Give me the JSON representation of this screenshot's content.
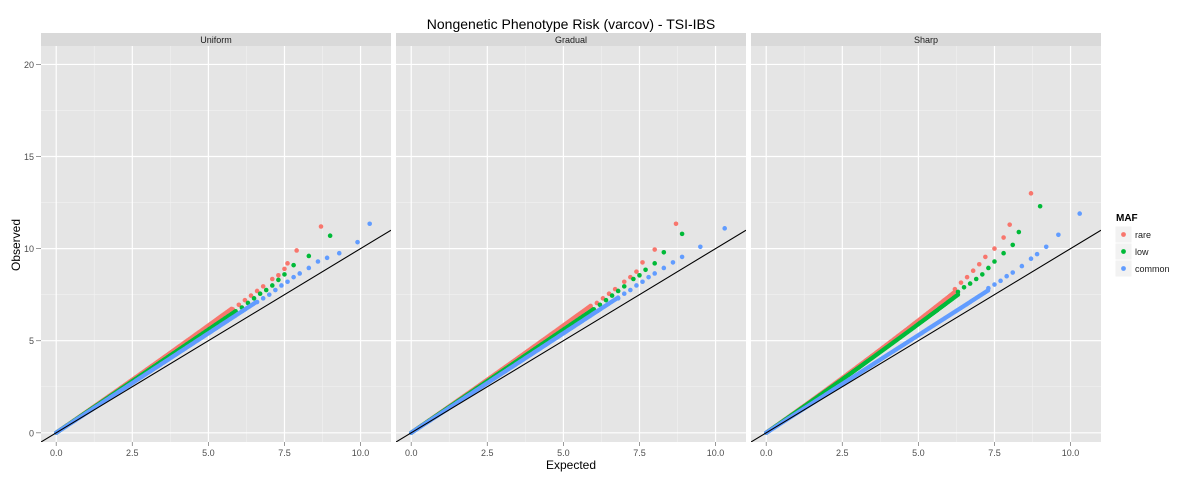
{
  "chart_data": {
    "type": "scatter",
    "title": "Nongenetic Phenotype Risk (varcov) - TSI-IBS",
    "xlabel": "Expected",
    "ylabel": "Observed",
    "xlim": [
      -0.5,
      11
    ],
    "ylim": [
      -0.5,
      21
    ],
    "x_ticks": [
      "0.0",
      "2.5",
      "5.0",
      "7.5",
      "10.0"
    ],
    "y_ticks": [
      "0",
      "5",
      "10",
      "15",
      "20"
    ],
    "grid": true,
    "reference_line": "y = x",
    "legend": {
      "title": "MAF",
      "placement": "right",
      "entries": [
        "rare",
        "low",
        "common"
      ]
    },
    "colors": {
      "rare": "#F8766D",
      "low": "#00BA38",
      "common": "#619CFF"
    },
    "panels": [
      {
        "title": "Uniform",
        "series": [
          {
            "name": "rare",
            "slope": 1.14,
            "curve": 0.005,
            "xmax": 8.7,
            "tail": [
              [
                5.8,
                6.7
              ],
              [
                6.0,
                6.95
              ],
              [
                6.2,
                7.2
              ],
              [
                6.4,
                7.45
              ],
              [
                6.6,
                7.7
              ],
              [
                6.8,
                7.95
              ],
              [
                7.1,
                8.35
              ],
              [
                7.3,
                8.55
              ],
              [
                7.5,
                8.9
              ],
              [
                7.6,
                9.2
              ],
              [
                7.9,
                9.9
              ],
              [
                8.7,
                11.2
              ]
            ]
          },
          {
            "name": "low",
            "slope": 1.12,
            "curve": 0.0,
            "xmax": 9.0,
            "tail": [
              [
                5.9,
                6.55
              ],
              [
                6.1,
                6.8
              ],
              [
                6.3,
                7.05
              ],
              [
                6.5,
                7.3
              ],
              [
                6.7,
                7.55
              ],
              [
                6.9,
                7.75
              ],
              [
                7.1,
                8.0
              ],
              [
                7.3,
                8.3
              ],
              [
                7.5,
                8.6
              ],
              [
                7.8,
                9.1
              ],
              [
                8.3,
                9.6
              ],
              [
                9.0,
                10.7
              ]
            ]
          },
          {
            "name": "common",
            "slope": 1.08,
            "curve": 0.0,
            "xmax": 10.3,
            "tail": [
              [
                6.6,
                7.1
              ],
              [
                6.8,
                7.3
              ],
              [
                7.0,
                7.5
              ],
              [
                7.2,
                7.75
              ],
              [
                7.4,
                8.0
              ],
              [
                7.6,
                8.2
              ],
              [
                7.8,
                8.45
              ],
              [
                8.0,
                8.65
              ],
              [
                8.3,
                8.95
              ],
              [
                8.6,
                9.3
              ],
              [
                8.9,
                9.5
              ],
              [
                9.3,
                9.75
              ],
              [
                9.9,
                10.35
              ],
              [
                10.3,
                11.35
              ]
            ]
          }
        ]
      },
      {
        "title": "Gradual",
        "series": [
          {
            "name": "rare",
            "slope": 1.14,
            "curve": 0.005,
            "xmax": 8.7,
            "tail": [
              [
                5.9,
                6.8
              ],
              [
                6.1,
                7.05
              ],
              [
                6.3,
                7.3
              ],
              [
                6.5,
                7.55
              ],
              [
                6.7,
                7.8
              ],
              [
                7.0,
                8.2
              ],
              [
                7.2,
                8.45
              ],
              [
                7.4,
                8.75
              ],
              [
                7.6,
                9.25
              ],
              [
                8.0,
                9.95
              ],
              [
                8.7,
                11.35
              ]
            ]
          },
          {
            "name": "low",
            "slope": 1.12,
            "curve": 0.0,
            "xmax": 9.0,
            "tail": [
              [
                6.0,
                6.7
              ],
              [
                6.2,
                6.95
              ],
              [
                6.4,
                7.2
              ],
              [
                6.6,
                7.45
              ],
              [
                6.8,
                7.7
              ],
              [
                7.0,
                7.95
              ],
              [
                7.3,
                8.35
              ],
              [
                7.5,
                8.55
              ],
              [
                7.7,
                8.85
              ],
              [
                8.0,
                9.2
              ],
              [
                8.3,
                9.8
              ],
              [
                8.9,
                10.8
              ]
            ]
          },
          {
            "name": "common",
            "slope": 1.08,
            "curve": 0.0,
            "xmax": 10.3,
            "tail": [
              [
                6.8,
                7.3
              ],
              [
                7.0,
                7.55
              ],
              [
                7.2,
                7.75
              ],
              [
                7.4,
                8.0
              ],
              [
                7.6,
                8.2
              ],
              [
                7.8,
                8.45
              ],
              [
                8.0,
                8.65
              ],
              [
                8.3,
                8.95
              ],
              [
                8.6,
                9.25
              ],
              [
                8.9,
                9.55
              ],
              [
                9.5,
                10.1
              ],
              [
                10.3,
                11.1
              ]
            ]
          }
        ]
      },
      {
        "title": "Sharp",
        "series": [
          {
            "name": "rare",
            "slope": 1.16,
            "curve": 0.012,
            "xmax": 8.7,
            "tail": [
              [
                6.2,
                7.8
              ],
              [
                6.4,
                8.15
              ],
              [
                6.6,
                8.45
              ],
              [
                6.8,
                8.8
              ],
              [
                7.0,
                9.15
              ],
              [
                7.2,
                9.55
              ],
              [
                7.5,
                10.0
              ],
              [
                7.8,
                10.6
              ],
              [
                8.0,
                11.3
              ],
              [
                8.7,
                13.0
              ]
            ]
          },
          {
            "name": "low",
            "slope": 1.14,
            "curve": 0.008,
            "xmax": 9.0,
            "tail": [
              [
                6.3,
                7.65
              ],
              [
                6.5,
                7.9
              ],
              [
                6.7,
                8.1
              ],
              [
                6.9,
                8.35
              ],
              [
                7.1,
                8.6
              ],
              [
                7.3,
                8.95
              ],
              [
                7.5,
                9.3
              ],
              [
                7.8,
                9.75
              ],
              [
                8.1,
                10.2
              ],
              [
                8.3,
                10.9
              ],
              [
                9.0,
                12.3
              ]
            ]
          },
          {
            "name": "common",
            "slope": 1.06,
            "curve": 0.0,
            "xmax": 10.3,
            "tail": [
              [
                7.3,
                7.85
              ],
              [
                7.5,
                8.05
              ],
              [
                7.7,
                8.25
              ],
              [
                7.9,
                8.5
              ],
              [
                8.1,
                8.7
              ],
              [
                8.4,
                9.05
              ],
              [
                8.7,
                9.45
              ],
              [
                8.9,
                9.7
              ],
              [
                9.2,
                10.1
              ],
              [
                9.6,
                10.75
              ],
              [
                10.3,
                11.9
              ]
            ]
          }
        ]
      }
    ]
  }
}
